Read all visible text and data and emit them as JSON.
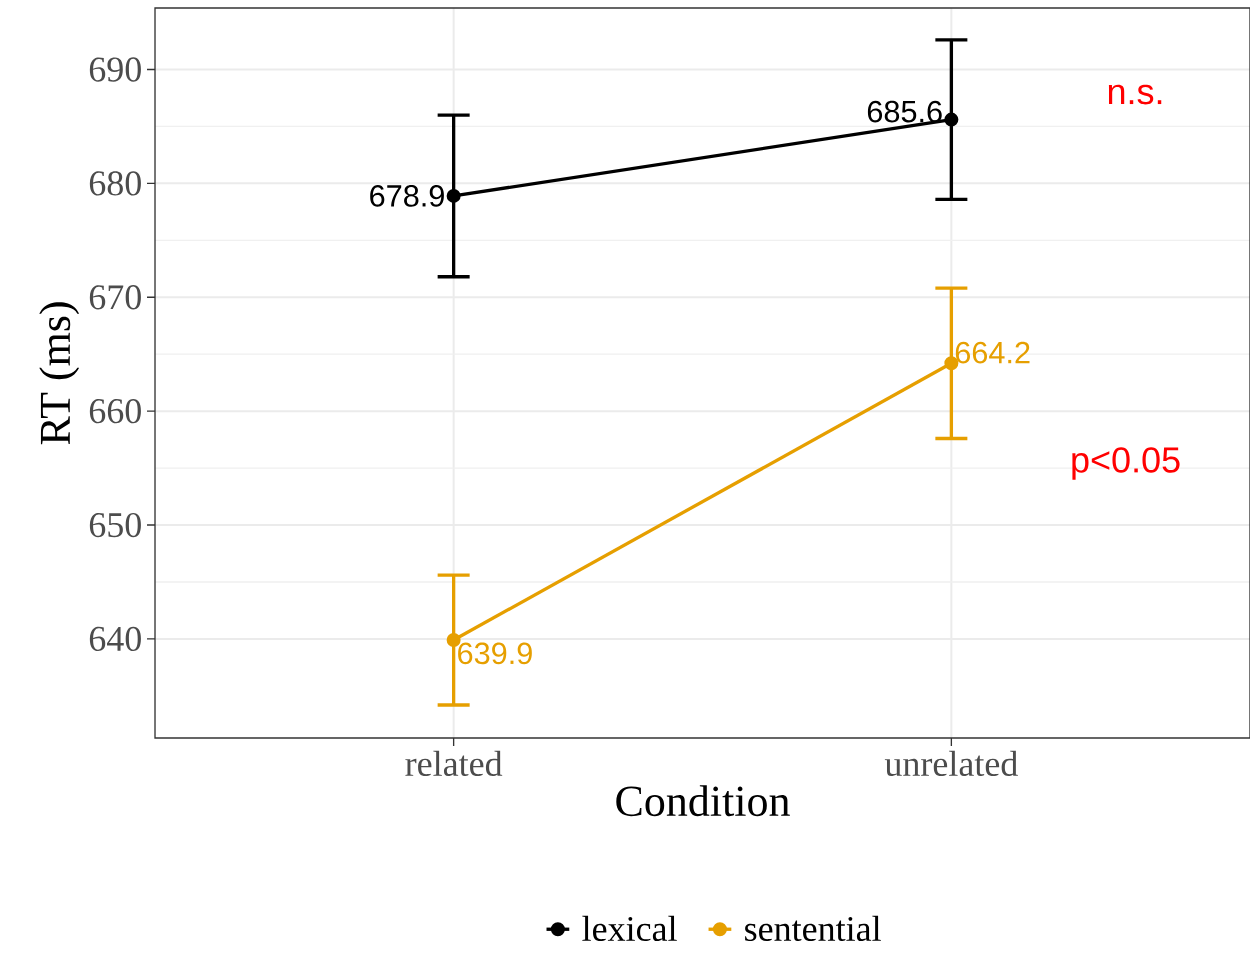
{
  "chart_data": {
    "type": "line",
    "xlabel": "Condition",
    "ylabel": "RT (ms)",
    "categories": [
      "related",
      "unrelated"
    ],
    "series": [
      {
        "name": "lexical",
        "color": "#000000",
        "values": [
          678.9,
          685.6
        ],
        "errors": [
          7.1,
          7.0
        ]
      },
      {
        "name": "sentential",
        "color": "#e69f00",
        "values": [
          639.9,
          664.2
        ],
        "errors": [
          5.7,
          6.6
        ]
      }
    ],
    "ylim": [
      631.3,
      695.4
    ],
    "yticks": [
      640,
      650,
      660,
      670,
      680,
      690
    ],
    "grid": true,
    "legend": "bottom",
    "marker": "circle",
    "line_style": "solid",
    "data_labels": true,
    "annotations": [
      "n.s.",
      "p<0.05"
    ]
  }
}
